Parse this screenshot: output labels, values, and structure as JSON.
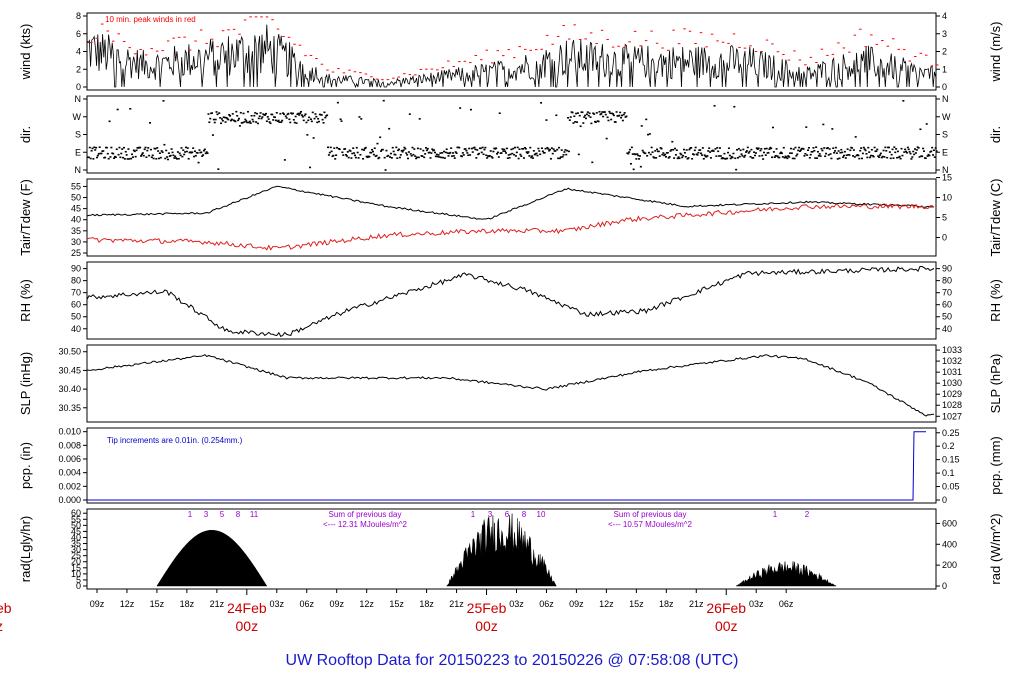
{
  "title": "UW Rooftop Data for 20150223  to  20150226 @ 07:58:08  (UTC)",
  "colors": {
    "primary": "#000000",
    "temp": "#000000",
    "dew": "#e02020",
    "peak": "#ff0000",
    "pcp": "#0000cc",
    "title": "#1a1acc",
    "annot": "#9900cc",
    "day": "#cc0000"
  },
  "x_axis": {
    "ticks": [
      "09z",
      "12z",
      "15z",
      "18z",
      "21z",
      "03z",
      "06z",
      "09z",
      "12z",
      "15z",
      "18z",
      "21z",
      "03z",
      "06z",
      "09z",
      "12z",
      "15z",
      "18z",
      "21z",
      "03z",
      "06z"
    ],
    "day_markers": [
      {
        "label": "24Feb",
        "sub": "00z"
      },
      {
        "label": "25Feb",
        "sub": "00z"
      },
      {
        "label": "26Feb",
        "sub": "00z"
      }
    ],
    "left_cut_label": "eb",
    "left_cut_sub": "z"
  },
  "panels": {
    "wind": {
      "ylabel_left": "wind (kts)",
      "ylabel_right": "wind (m/s)",
      "left_ticks": [
        "0",
        "2",
        "4",
        "6",
        "8"
      ],
      "right_ticks": [
        "0",
        "1",
        "2",
        "3",
        "4"
      ],
      "note": "10 min. peak winds in red"
    },
    "dir": {
      "ylabel_left": "dir.",
      "ylabel_right": "dir.",
      "left_ticks": [
        "N",
        "E",
        "S",
        "W",
        "N"
      ],
      "right_ticks": [
        "N",
        "E",
        "S",
        "W",
        "N"
      ]
    },
    "temp": {
      "ylabel_left": "Tair/Tdew (F)",
      "ylabel_right": "Tair/Tdew (C)",
      "left_ticks": [
        "25",
        "30",
        "35",
        "40",
        "45",
        "50",
        "55"
      ],
      "right_ticks": [
        "0",
        "5",
        "10",
        "15"
      ]
    },
    "rh": {
      "ylabel_left": "RH (%)",
      "ylabel_right": "RH (%)",
      "left_ticks": [
        "40",
        "50",
        "60",
        "70",
        "80",
        "90"
      ],
      "right_ticks": [
        "40",
        "50",
        "60",
        "70",
        "80",
        "90"
      ]
    },
    "slp": {
      "ylabel_left": "SLP (inHg)",
      "ylabel_right": "SLP (hPa)",
      "left_ticks": [
        "30.35",
        "30.40",
        "30.45",
        "30.50"
      ],
      "right_ticks": [
        "1027",
        "1028",
        "1029",
        "1030",
        "1031",
        "1032",
        "1033"
      ]
    },
    "pcp": {
      "ylabel_left": "pcp. (in)",
      "ylabel_right": "pcp. (mm)",
      "left_ticks": [
        "0.000",
        "0.002",
        "0.004",
        "0.006",
        "0.008",
        "0.010"
      ],
      "right_ticks": [
        "0",
        "0.05",
        "0.1",
        "0.15",
        "0.2",
        "0.25"
      ],
      "note": "Tip increments are 0.01in. (0.254mm.)"
    },
    "rad": {
      "ylabel_left": "rad(Lgly/hr)",
      "ylabel_right": "rad (W/m^2)",
      "left_ticks": [
        "0",
        "5",
        "10",
        "15",
        "20",
        "25",
        "30",
        "35",
        "40",
        "45",
        "50",
        "55",
        "60"
      ],
      "right_ticks": [
        "0",
        "200",
        "400",
        "600"
      ],
      "hour_marks": [
        [
          "1",
          "3",
          "5",
          "8",
          "11"
        ],
        [
          "1",
          "3",
          "6",
          "8",
          "10"
        ],
        [
          "1",
          "2"
        ]
      ],
      "sums": [
        {
          "line1": "Sum of previous day",
          "line2": "<--- 12.31 MJoules/m^2"
        },
        {
          "line1": "Sum of previous day",
          "line2": "<--- 10.57 MJoules/m^2"
        }
      ]
    }
  },
  "chart_data": [
    {
      "type": "line",
      "panel": "wind",
      "xlabel": "",
      "ylabel": "wind (kts)",
      "ylim": [
        0,
        8
      ],
      "x_hours": [
        0,
        6,
        12,
        18,
        24,
        30,
        42,
        48,
        54,
        66,
        72,
        78,
        84
      ],
      "series": [
        {
          "name": "",
          "values": [
            4.5,
            2.5,
            3.5,
            4.5,
            1.0,
            0.5,
            2.0,
            3.5,
            3.0,
            3.0,
            1.5,
            3.0,
            1.5
          ]
        }
      ],
      "peak_series": {
        "name": "10 min. peak winds",
        "values": [
          6.5,
          4.5,
          5.5,
          7.5,
          2.0,
          1.0,
          4.0,
          6.0,
          5.5,
          5.5,
          3.0,
          6.0,
          3.0
        ]
      }
    },
    {
      "type": "scatter",
      "panel": "dir",
      "ylim": [
        "N",
        "N"
      ],
      "x_hours": [
        0,
        6,
        12,
        18,
        24,
        30,
        42,
        48,
        54,
        66,
        72,
        78,
        84
      ],
      "series": [
        {
          "name": "",
          "values": [
            "E",
            "E",
            "W",
            "W",
            "E",
            "E",
            "E",
            "W",
            "E",
            "E",
            "E",
            "E",
            "E"
          ]
        }
      ]
    },
    {
      "type": "line",
      "panel": "temp",
      "ylim": [
        25,
        55
      ],
      "x_hours": [
        0,
        12,
        19,
        30,
        40,
        48,
        54,
        60,
        72,
        84
      ],
      "series": [
        {
          "name": "Tair",
          "values": [
            42,
            43,
            55,
            46,
            40,
            54,
            50,
            46,
            48,
            46
          ]
        },
        {
          "name": "Tdew",
          "values": [
            31,
            30,
            27,
            33,
            35,
            35,
            40,
            42,
            46,
            46
          ]
        }
      ]
    },
    {
      "type": "line",
      "panel": "rh",
      "ylim": [
        35,
        92
      ],
      "x_hours": [
        0,
        8,
        14,
        20,
        26,
        38,
        44,
        50,
        56,
        66,
        84
      ],
      "series": [
        {
          "name": "",
          "values": [
            66,
            71,
            38,
            35,
            55,
            85,
            72,
            52,
            55,
            86,
            90
          ]
        }
      ]
    },
    {
      "type": "line",
      "panel": "slp",
      "ylim": [
        30.32,
        30.51
      ],
      "x_hours": [
        0,
        12,
        20,
        36,
        46,
        56,
        68,
        72,
        78,
        84
      ],
      "series": [
        {
          "name": "",
          "values": [
            30.45,
            30.49,
            30.43,
            30.43,
            30.4,
            30.45,
            30.49,
            30.48,
            30.42,
            30.33
          ]
        }
      ]
    },
    {
      "type": "line",
      "panel": "pcp",
      "ylim": [
        0,
        0.01
      ],
      "x_hours": [
        0,
        82.7,
        82.8,
        84
      ],
      "series": [
        {
          "name": "",
          "values": [
            0,
            0,
            0.01,
            0.01
          ]
        }
      ]
    },
    {
      "type": "area",
      "panel": "rad",
      "ylim": [
        0,
        60
      ],
      "days": [
        {
          "sunrise_hour": 7,
          "sunset_hour": 18,
          "peak": 46
        },
        {
          "sunrise_hour": 36,
          "sunset_hour": 47,
          "peak": 60
        },
        {
          "sunrise_hour": 65,
          "sunset_hour": 75,
          "peak": 20
        }
      ]
    }
  ]
}
